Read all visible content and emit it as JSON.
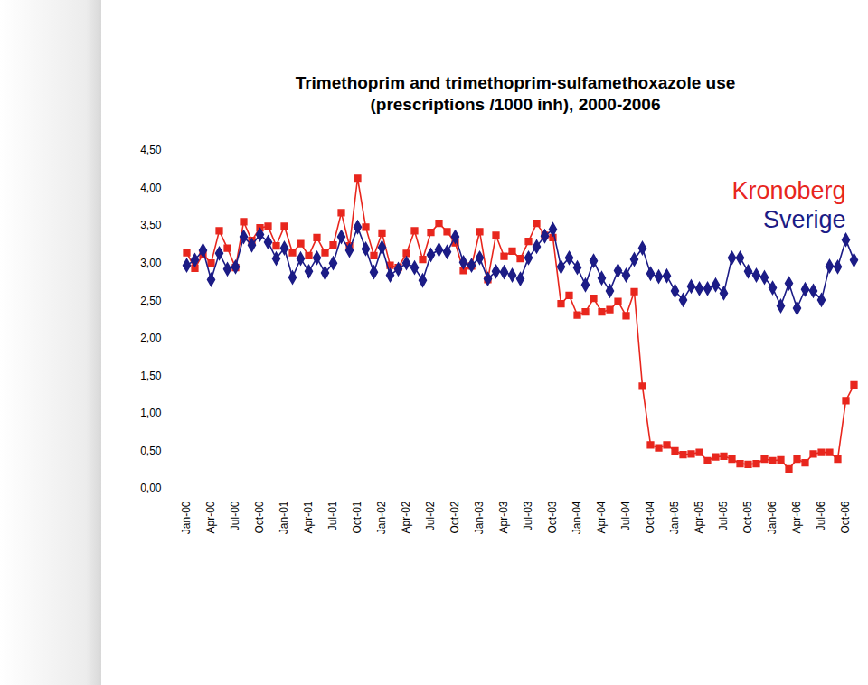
{
  "chart_data": {
    "type": "line",
    "title": "Trimethoprim and trimethoprim-sulfamethoxazole use",
    "subtitle": "(prescriptions /1000 inh), 2000-2006",
    "categories": [
      "Jan-00",
      null,
      null,
      "Apr-00",
      null,
      null,
      "Jul-00",
      null,
      null,
      "Oct-00",
      null,
      null,
      "Jan-01",
      null,
      null,
      "Apr-01",
      null,
      null,
      "Jul-01",
      null,
      null,
      "Oct-01",
      null,
      null,
      "Jan-02",
      null,
      null,
      "Apr-02",
      null,
      null,
      "Jul-02",
      null,
      null,
      "Oct-02",
      null,
      null,
      "Jan-03",
      null,
      null,
      "Apr-03",
      null,
      null,
      "Jul-03",
      null,
      null,
      "Oct-03",
      null,
      null,
      "Jan-04",
      null,
      null,
      "Apr-04",
      null,
      null,
      "Jul-04",
      null,
      null,
      "Oct-04",
      null,
      null,
      "Jan-05",
      null,
      null,
      "Apr-05",
      null,
      null,
      "Jul-05",
      null,
      null,
      "Oct-05",
      null,
      null,
      "Jan-06",
      null,
      null,
      "Apr-06",
      null,
      null,
      "Jul-06",
      null,
      null,
      "Oct-06",
      null
    ],
    "series": [
      {
        "name": "Kronoberg",
        "color": "#e8261d",
        "marker": "square",
        "values": [
          3.14,
          2.93,
          3.12,
          3.0,
          3.43,
          3.2,
          2.94,
          3.55,
          3.3,
          3.47,
          3.49,
          3.23,
          3.49,
          3.14,
          3.26,
          3.1,
          3.34,
          3.14,
          3.24,
          3.67,
          3.23,
          4.13,
          3.48,
          3.1,
          3.4,
          2.97,
          2.94,
          3.13,
          3.43,
          3.05,
          3.41,
          3.53,
          3.42,
          3.27,
          2.9,
          2.96,
          3.42,
          2.78,
          3.37,
          3.09,
          3.16,
          3.06,
          3.29,
          3.53,
          3.37,
          3.34,
          2.46,
          2.57,
          2.31,
          2.35,
          2.53,
          2.35,
          2.38,
          2.49,
          2.3,
          2.62,
          1.36,
          0.58,
          0.54,
          0.58,
          0.5,
          0.45,
          0.46,
          0.48,
          0.37,
          0.42,
          0.43,
          0.39,
          0.33,
          0.32,
          0.33,
          0.39,
          0.37,
          0.38,
          0.26,
          0.39,
          0.34,
          0.46,
          0.48,
          0.48,
          0.39,
          1.17,
          1.38
        ]
      },
      {
        "name": "Sverige",
        "color": "#1c1c86",
        "marker": "diamond",
        "values": [
          2.97,
          3.04,
          3.17,
          2.78,
          3.13,
          2.92,
          2.95,
          3.35,
          3.24,
          3.38,
          3.28,
          3.06,
          3.2,
          2.81,
          3.06,
          2.89,
          3.07,
          2.87,
          3.0,
          3.35,
          3.17,
          3.48,
          3.19,
          2.88,
          3.21,
          2.84,
          2.92,
          3.0,
          2.94,
          2.77,
          3.11,
          3.18,
          3.15,
          3.35,
          3.01,
          2.97,
          3.07,
          2.79,
          2.89,
          2.88,
          2.84,
          2.79,
          3.07,
          3.22,
          3.36,
          3.45,
          2.95,
          3.07,
          2.94,
          2.71,
          3.03,
          2.8,
          2.63,
          2.9,
          2.84,
          3.05,
          3.2,
          2.86,
          2.82,
          2.83,
          2.63,
          2.51,
          2.69,
          2.66,
          2.66,
          2.71,
          2.6,
          3.07,
          3.07,
          2.89,
          2.84,
          2.81,
          2.67,
          2.43,
          2.73,
          2.4,
          2.65,
          2.63,
          2.51,
          2.96,
          2.95,
          3.31,
          3.04
        ]
      }
    ],
    "ylim": [
      0,
      4.5
    ],
    "yticks": [
      {
        "value": 0,
        "label": "0,00"
      },
      {
        "value": 0.5,
        "label": "0,50"
      },
      {
        "value": 1,
        "label": "1,00"
      },
      {
        "value": 1.5,
        "label": "1,50"
      },
      {
        "value": 2,
        "label": "2,00"
      },
      {
        "value": 2.5,
        "label": "2,50"
      },
      {
        "value": 3,
        "label": "3,00"
      },
      {
        "value": 3.5,
        "label": "3,50"
      },
      {
        "value": 4,
        "label": "4,00"
      },
      {
        "value": 4.5,
        "label": "4,50"
      }
    ],
    "grid": false,
    "legend": "top-right"
  }
}
